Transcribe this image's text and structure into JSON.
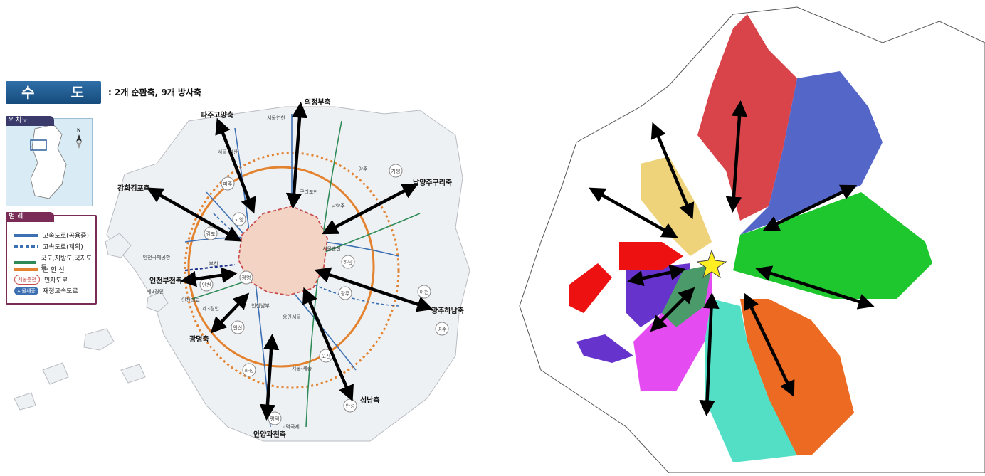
{
  "left_map": {
    "title": "수 도 권",
    "subtitle": ": 2개 순환축, 9개 방사축",
    "inset": {
      "tab": "위치도",
      "small_label": "수도권",
      "compass": "N"
    },
    "legend": {
      "tab": "범 례",
      "items": [
        {
          "label": "고속도로(공용중)",
          "color": "#3d6fb3"
        },
        {
          "label": "고속도로(계획)",
          "color": "#3d6fb3"
        },
        {
          "label": "국도,지방도,국지도 등",
          "color": "#2e8b57"
        },
        {
          "label": "순 환 선",
          "color": "#e3822f"
        },
        {
          "label": "민자도로",
          "pill": "서울춘천",
          "color": "#c84b4b"
        },
        {
          "label": "재정고속도로",
          "pill": "서울세종",
          "color": "#3d6fb3"
        }
      ]
    },
    "axes": [
      "의정부축",
      "파주고양축",
      "남양주구리축",
      "강화김포축",
      "인천부천축",
      "광주하남축",
      "광명축",
      "안양과천축",
      "성남축"
    ],
    "map_labels": [
      "서울연천",
      "파주",
      "고양",
      "김포",
      "인천",
      "부천",
      "광명",
      "안산",
      "화성",
      "평택",
      "오산",
      "광주",
      "하남",
      "남양주",
      "가평",
      "여주",
      "이천",
      "안성",
      "양주",
      "서울-세종",
      "인천국제공항",
      "제2경인",
      "제3경인",
      "구리포천",
      "서울춘천",
      "용인서울",
      "인천남부",
      "인천대교",
      "서울-부산",
      "고덕국제"
    ]
  },
  "right_map": {
    "sectors": [
      {
        "name": "north",
        "color": "#d9434a"
      },
      {
        "name": "northeast",
        "color": "#5566c9"
      },
      {
        "name": "east",
        "color": "#1fc72f"
      },
      {
        "name": "southeast",
        "color": "#ec6a22"
      },
      {
        "name": "south",
        "color": "#52dfc5"
      },
      {
        "name": "southwest",
        "color": "#e44cf2"
      },
      {
        "name": "west",
        "color": "#6633cc"
      },
      {
        "name": "west-island",
        "color": "#ee1111"
      },
      {
        "name": "northwest",
        "color": "#eed37a"
      }
    ],
    "center_star_color": "#ffee22"
  },
  "colors": {
    "arrow": "#000000",
    "seoul": "#f3d3c4",
    "ring": "#e3822f"
  }
}
